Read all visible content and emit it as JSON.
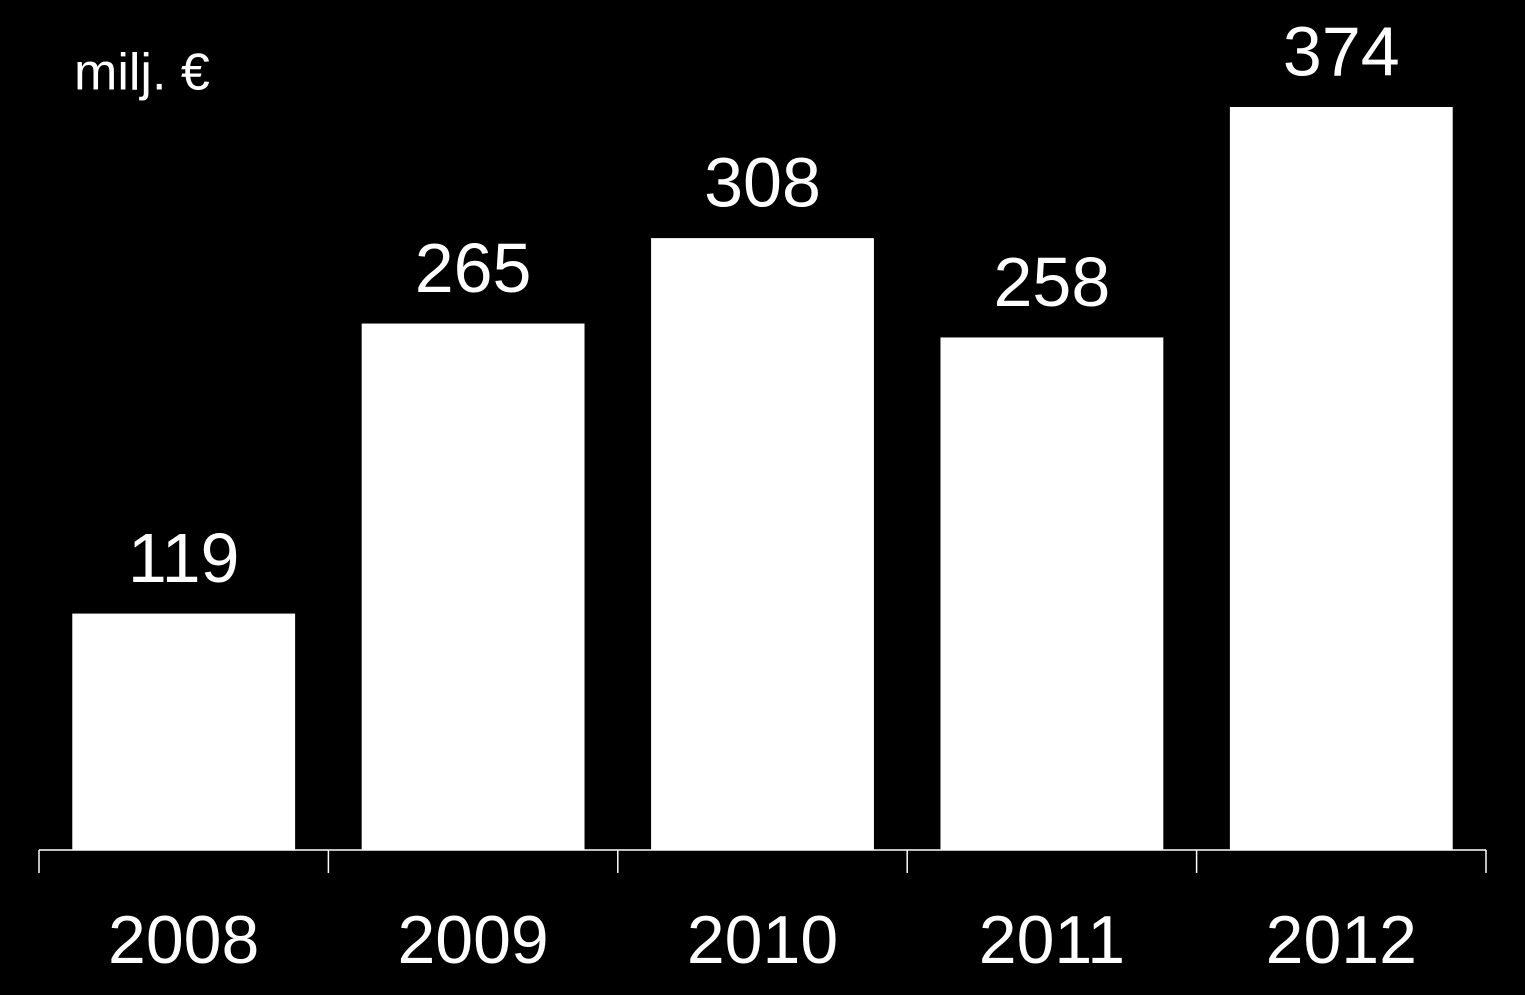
{
  "chart_data": {
    "type": "bar",
    "subtitle": "milj. €",
    "categories": [
      "2008",
      "2009",
      "2010",
      "2011",
      "2012"
    ],
    "values": [
      119,
      265,
      308,
      258,
      374
    ],
    "color": "#ffffff"
  }
}
